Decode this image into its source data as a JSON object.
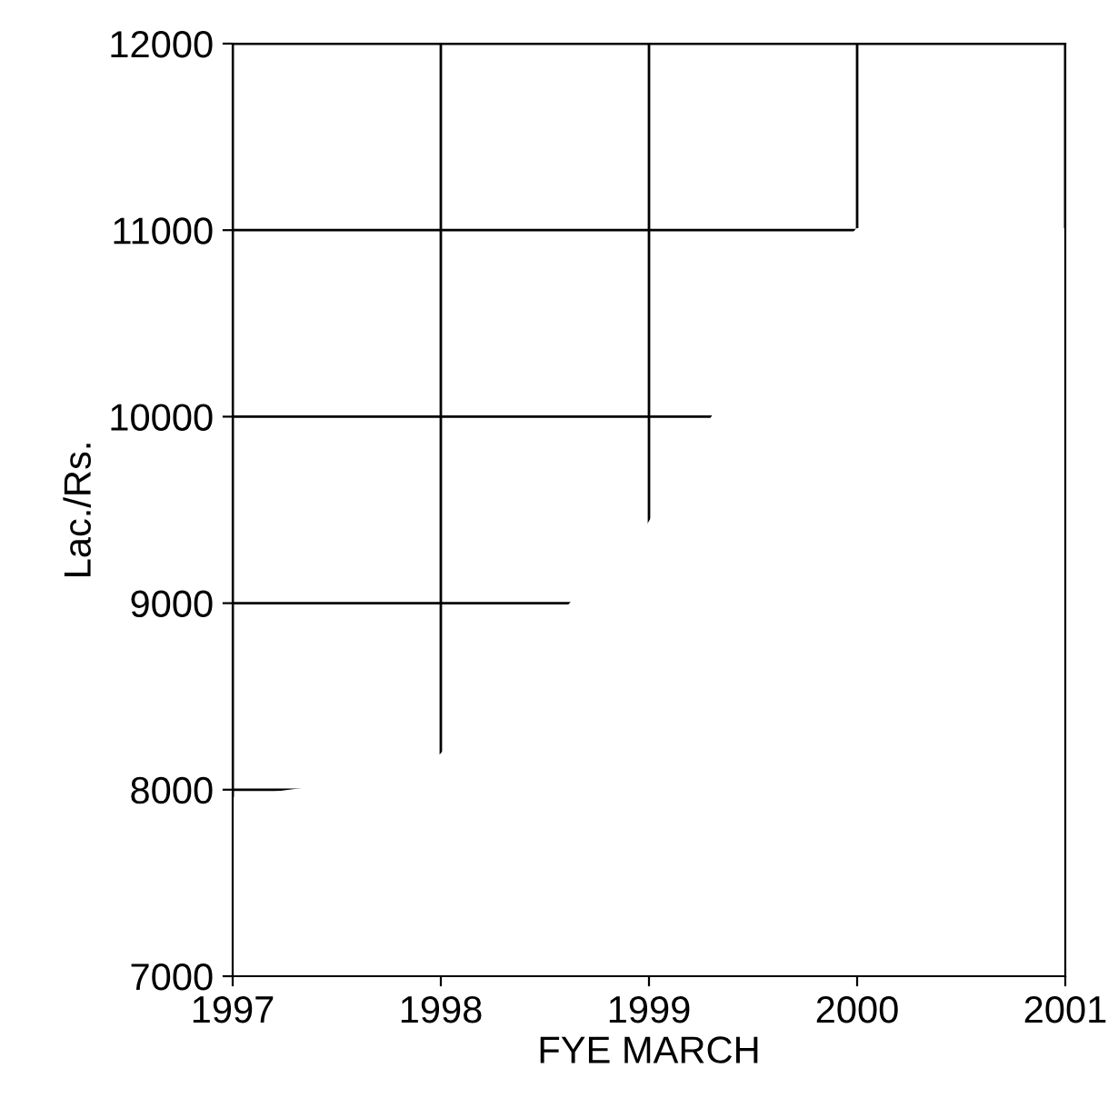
{
  "chart_data": {
    "type": "area",
    "xlabel": "FYE MARCH",
    "ylabel": "Lac./Rs.",
    "x": [
      1997,
      1997.34,
      1998,
      1998.63,
      1999,
      1999.31,
      2000,
      2001
    ],
    "series": [
      {
        "color": "#ffffff",
        "values": [
          7950,
          8000,
          8180,
          9000,
          9420,
          10000,
          11000,
          11000
        ]
      }
    ],
    "xlim": [
      1997,
      2001
    ],
    "ylim": [
      7000,
      12000
    ],
    "xticks": [
      1997,
      1998,
      1999,
      2000,
      2001
    ],
    "yticks": [
      7000,
      8000,
      9000,
      10000,
      11000,
      12000
    ],
    "grid": true,
    "legend": false
  }
}
